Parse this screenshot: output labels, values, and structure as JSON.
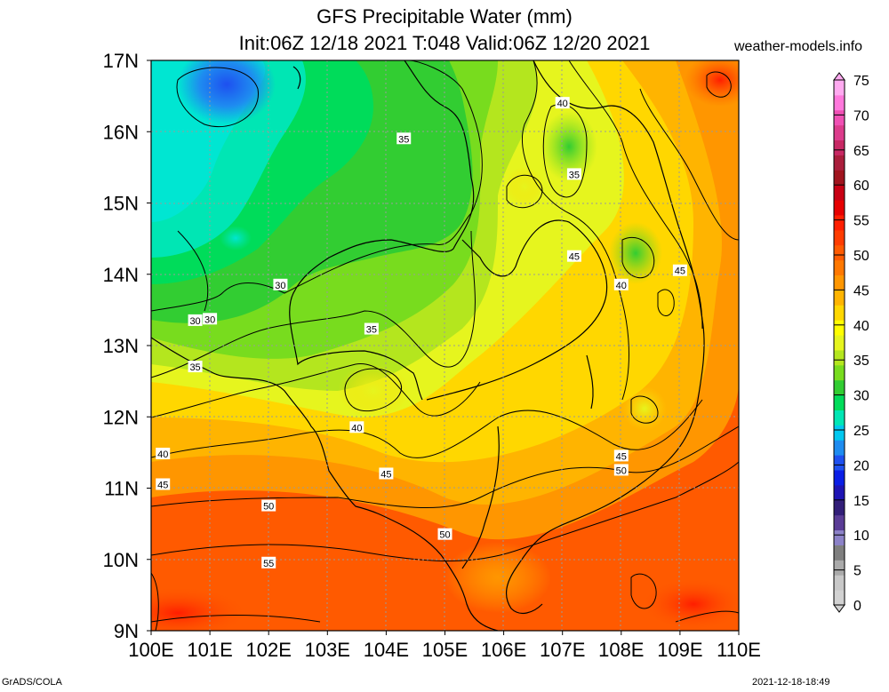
{
  "header": {
    "title_line1": "GFS Precipitable Water (mm)",
    "title_line2": "Init:06Z 12/18 2021 T:048 Valid:06Z 12/20 2021",
    "site": "weather-models.info"
  },
  "footer": {
    "left": "GrADS/COLA",
    "right": "2021-12-18-18:49"
  },
  "map": {
    "lon_labels": [
      "100E",
      "101E",
      "102E",
      "103E",
      "104E",
      "105E",
      "106E",
      "107E",
      "108E",
      "109E",
      "110E"
    ],
    "lat_labels": [
      "17N",
      "16N",
      "15N",
      "14N",
      "13N",
      "12N",
      "11N",
      "10N",
      "9N"
    ],
    "lon_range": [
      100,
      110
    ],
    "lat_range": [
      9,
      17
    ],
    "contour_labels": [
      {
        "text": "40",
        "lon": 107.0,
        "lat": 16.4
      },
      {
        "text": "35",
        "lon": 104.3,
        "lat": 15.9
      },
      {
        "text": "35",
        "lon": 107.2,
        "lat": 15.4
      },
      {
        "text": "45",
        "lon": 107.2,
        "lat": 14.25
      },
      {
        "text": "45",
        "lon": 109.0,
        "lat": 14.05
      },
      {
        "text": "40",
        "lon": 108.0,
        "lat": 13.85
      },
      {
        "text": "30",
        "lon": 102.2,
        "lat": 13.85
      },
      {
        "text": "30",
        "lon": 100.75,
        "lat": 13.35
      },
      {
        "text": "30",
        "lon": 101.0,
        "lat": 13.37
      },
      {
        "text": "35",
        "lon": 103.75,
        "lat": 13.23
      },
      {
        "text": "35",
        "lon": 100.75,
        "lat": 12.7
      },
      {
        "text": "40",
        "lon": 103.5,
        "lat": 11.85
      },
      {
        "text": "40",
        "lon": 100.2,
        "lat": 11.48
      },
      {
        "text": "45",
        "lon": 108.0,
        "lat": 11.45
      },
      {
        "text": "50",
        "lon": 108.0,
        "lat": 11.25
      },
      {
        "text": "45",
        "lon": 104.0,
        "lat": 11.2
      },
      {
        "text": "45",
        "lon": 100.2,
        "lat": 11.05
      },
      {
        "text": "50",
        "lon": 102.0,
        "lat": 10.75
      },
      {
        "text": "50",
        "lon": 105.0,
        "lat": 10.35
      },
      {
        "text": "55",
        "lon": 102.0,
        "lat": 9.95
      }
    ]
  },
  "colorbar": {
    "labels": [
      "75",
      "70",
      "65",
      "60",
      "55",
      "50",
      "45",
      "40",
      "35",
      "30",
      "25",
      "20",
      "15",
      "10",
      "5",
      "0"
    ],
    "colors": [
      "#d2d2d2",
      "#c8c8c8",
      "#aaaaaa",
      "#7f7f7f",
      "#8c82c8",
      "#5a3c96",
      "#321e78",
      "#1e14b4",
      "#0a1ee6",
      "#1e50f0",
      "#1e8cf0",
      "#00c8f0",
      "#00e6b4",
      "#00dc5a",
      "#32cd32",
      "#78dc1e",
      "#b4e61e",
      "#e6f51e",
      "#ffff00",
      "#ffd700",
      "#ffb400",
      "#ff9600",
      "#ff7800",
      "#ff5a00",
      "#ff3c00",
      "#ff1e00",
      "#e60000",
      "#c80014",
      "#a0141e",
      "#aa1e3c",
      "#c82864",
      "#dc3c8c",
      "#f050b4",
      "#ff78dc",
      "#ffaaf0"
    ]
  }
}
